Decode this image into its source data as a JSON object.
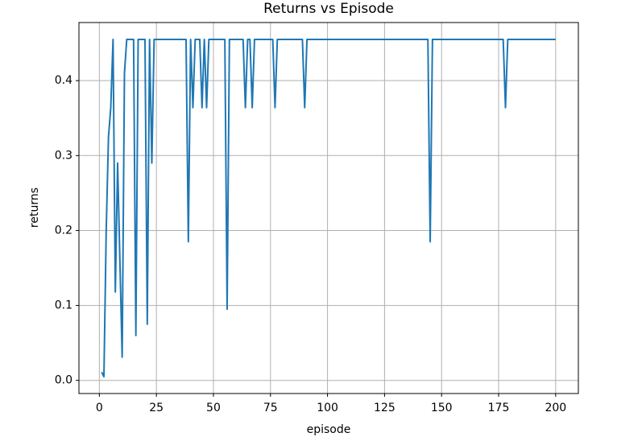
{
  "chart_data": {
    "type": "line",
    "title": "Returns vs Episode",
    "xlabel": "episode",
    "ylabel": "returns",
    "x": [
      1,
      2,
      3,
      4,
      5,
      6,
      7,
      8,
      9,
      10,
      11,
      12,
      13,
      14,
      15,
      16,
      17,
      18,
      19,
      20,
      21,
      22,
      23,
      24,
      25,
      26,
      27,
      28,
      29,
      30,
      31,
      32,
      33,
      34,
      35,
      36,
      37,
      38,
      39,
      40,
      41,
      42,
      43,
      44,
      45,
      46,
      47,
      48,
      49,
      50,
      51,
      52,
      53,
      54,
      55,
      56,
      57,
      58,
      59,
      60,
      61,
      62,
      63,
      64,
      65,
      66,
      67,
      68,
      69,
      70,
      71,
      72,
      73,
      74,
      75,
      76,
      77,
      78,
      79,
      80,
      81,
      82,
      83,
      84,
      85,
      86,
      87,
      88,
      89,
      90,
      91,
      92,
      93,
      94,
      95,
      96,
      97,
      98,
      99,
      100,
      101,
      102,
      103,
      104,
      105,
      106,
      107,
      108,
      109,
      110,
      111,
      112,
      113,
      114,
      115,
      116,
      117,
      118,
      119,
      120,
      121,
      122,
      123,
      124,
      125,
      126,
      127,
      128,
      129,
      130,
      131,
      132,
      133,
      134,
      135,
      136,
      137,
      138,
      139,
      140,
      141,
      142,
      143,
      144,
      145,
      146,
      147,
      148,
      149,
      150,
      151,
      152,
      153,
      154,
      155,
      156,
      157,
      158,
      159,
      160,
      161,
      162,
      163,
      164,
      165,
      166,
      167,
      168,
      169,
      170,
      171,
      172,
      173,
      174,
      175,
      176,
      177,
      178,
      179,
      180,
      181,
      182,
      183,
      184,
      185,
      186,
      187,
      188,
      189,
      190,
      191,
      192,
      193,
      194,
      195,
      196,
      197,
      198,
      199,
      200
    ],
    "series": [
      {
        "color": "#1f77b4",
        "values": [
          0.011,
          0.005,
          0.2,
          0.325,
          0.364,
          0.455,
          0.118,
          0.29,
          0.16,
          0.031,
          0.41,
          0.455,
          0.455,
          0.455,
          0.455,
          0.06,
          0.455,
          0.455,
          0.455,
          0.455,
          0.075,
          0.455,
          0.29,
          0.455,
          0.455,
          0.455,
          0.455,
          0.455,
          0.455,
          0.455,
          0.455,
          0.455,
          0.455,
          0.455,
          0.455,
          0.455,
          0.455,
          0.455,
          0.185,
          0.455,
          0.364,
          0.455,
          0.455,
          0.455,
          0.364,
          0.455,
          0.364,
          0.455,
          0.455,
          0.455,
          0.455,
          0.455,
          0.455,
          0.455,
          0.455,
          0.095,
          0.455,
          0.455,
          0.455,
          0.455,
          0.455,
          0.455,
          0.455,
          0.364,
          0.455,
          0.455,
          0.364,
          0.455,
          0.455,
          0.455,
          0.455,
          0.455,
          0.455,
          0.455,
          0.455,
          0.455,
          0.364,
          0.455,
          0.455,
          0.455,
          0.455,
          0.455,
          0.455,
          0.455,
          0.455,
          0.455,
          0.455,
          0.455,
          0.455,
          0.364,
          0.455,
          0.455,
          0.455,
          0.455,
          0.455,
          0.455,
          0.455,
          0.455,
          0.455,
          0.455,
          0.455,
          0.455,
          0.455,
          0.455,
          0.455,
          0.455,
          0.455,
          0.455,
          0.455,
          0.455,
          0.455,
          0.455,
          0.455,
          0.455,
          0.455,
          0.455,
          0.455,
          0.455,
          0.455,
          0.455,
          0.455,
          0.455,
          0.455,
          0.455,
          0.455,
          0.455,
          0.455,
          0.455,
          0.455,
          0.455,
          0.455,
          0.455,
          0.455,
          0.455,
          0.455,
          0.455,
          0.455,
          0.455,
          0.455,
          0.455,
          0.455,
          0.455,
          0.455,
          0.455,
          0.185,
          0.455,
          0.455,
          0.455,
          0.455,
          0.455,
          0.455,
          0.455,
          0.455,
          0.455,
          0.455,
          0.455,
          0.455,
          0.455,
          0.455,
          0.455,
          0.455,
          0.455,
          0.455,
          0.455,
          0.455,
          0.455,
          0.455,
          0.455,
          0.455,
          0.455,
          0.455,
          0.455,
          0.455,
          0.455,
          0.455,
          0.455,
          0.455,
          0.364,
          0.455,
          0.455,
          0.455,
          0.455,
          0.455,
          0.455,
          0.455,
          0.455,
          0.455,
          0.455,
          0.455,
          0.455,
          0.455,
          0.455,
          0.455,
          0.455,
          0.455,
          0.455,
          0.455,
          0.455,
          0.455,
          0.455
        ]
      }
    ],
    "xlim": [
      -8.95,
      209.95
    ],
    "ylim": [
      -0.0175,
      0.4775
    ],
    "xticks": [
      0,
      25,
      50,
      75,
      100,
      125,
      150,
      175,
      200
    ],
    "yticks": [
      {
        "value": 0,
        "label": "0.0"
      },
      0.1,
      0.2,
      0.3,
      0.4
    ],
    "grid": true
  }
}
